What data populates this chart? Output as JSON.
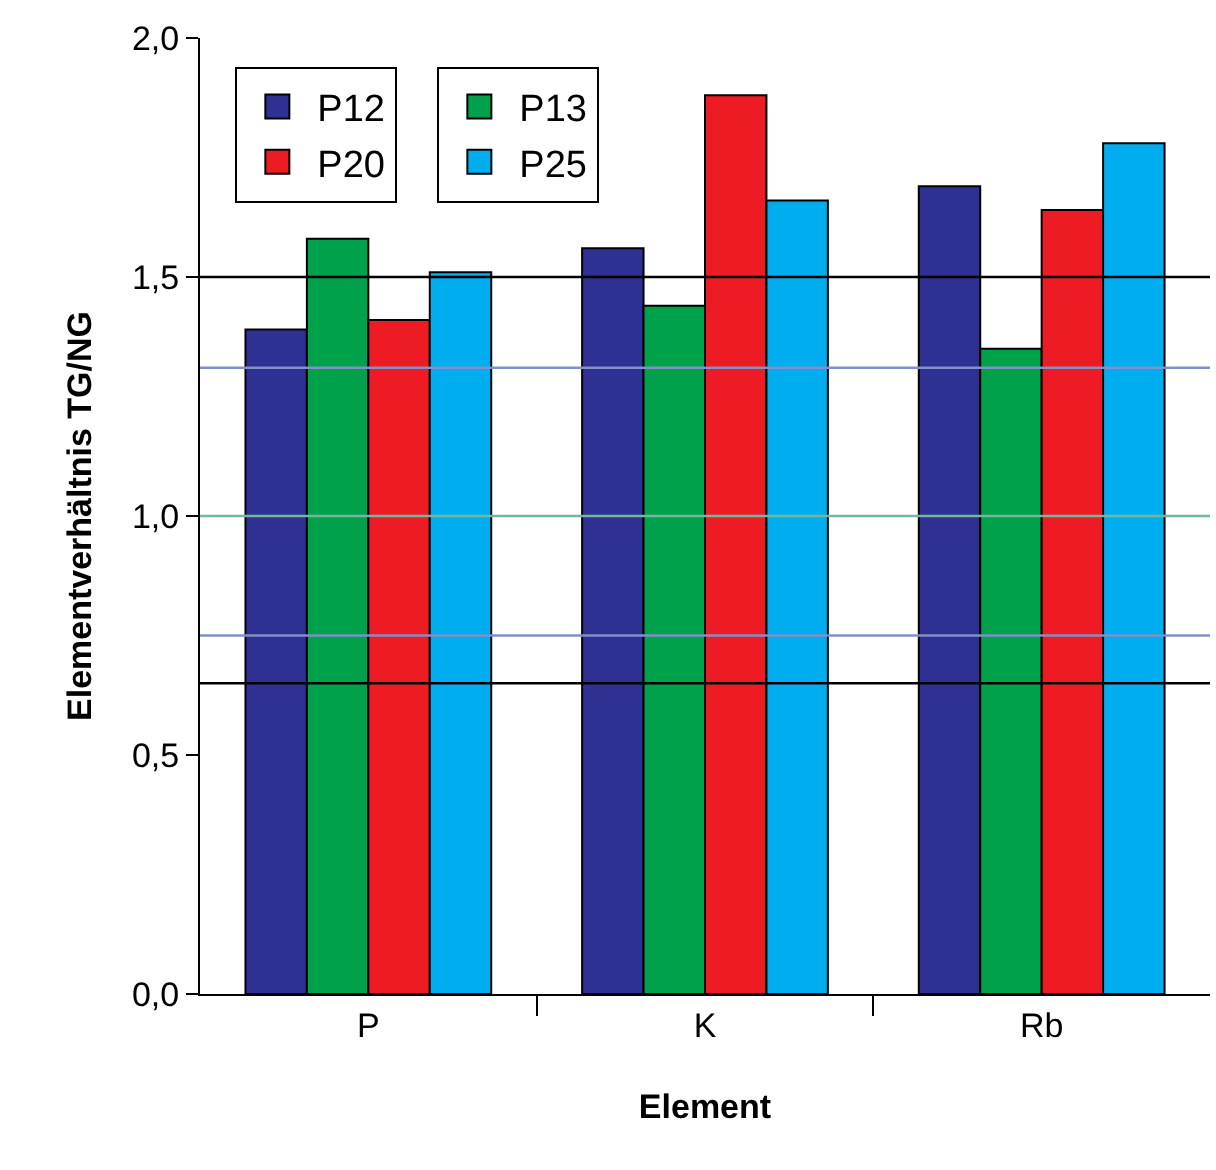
{
  "chart_data": {
    "type": "bar",
    "xlabel": "Element",
    "ylabel": "Elementverhältnis TG/NG",
    "categories": [
      "P",
      "K",
      "Rb"
    ],
    "series": [
      {
        "name": "P12",
        "color": "#2e3192",
        "values": [
          1.39,
          1.56,
          1.69
        ]
      },
      {
        "name": "P13",
        "color": "#00a14b",
        "values": [
          1.58,
          1.44,
          1.35
        ]
      },
      {
        "name": "P20",
        "color": "#ed1c24",
        "values": [
          1.41,
          1.88,
          1.64
        ]
      },
      {
        "name": "P25",
        "color": "#00aeef",
        "values": [
          1.51,
          1.66,
          1.78
        ]
      }
    ],
    "ylim": [
      0,
      2.0
    ],
    "yticks": [
      {
        "value": 0,
        "label": "0,0"
      },
      {
        "value": 0.5,
        "label": "0,5"
      },
      {
        "value": 1.0,
        "label": "1,0"
      },
      {
        "value": 1.5,
        "label": "1,5"
      },
      {
        "value": 2.0,
        "label": "2,0"
      }
    ],
    "ref_lines": [
      {
        "axis": "y",
        "value": 1.5,
        "color": "#000000"
      },
      {
        "axis": "y",
        "value": 1.31,
        "color": "#8090c8"
      },
      {
        "axis": "y",
        "value": 1.0,
        "color": "#70b8a0"
      },
      {
        "axis": "y",
        "value": 0.75,
        "color": "#8090c8"
      },
      {
        "axis": "y",
        "value": 0.65,
        "color": "#000000"
      }
    ],
    "legend": "top left"
  }
}
